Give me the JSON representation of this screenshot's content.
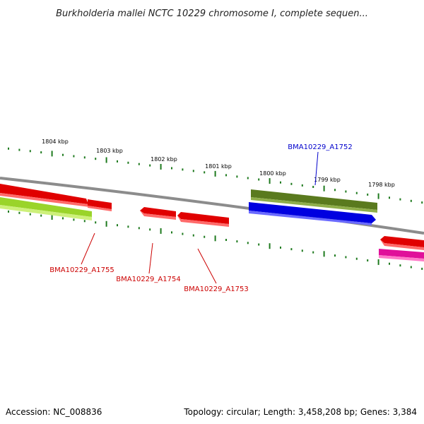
{
  "title": "Burkholderia mallei NCTC 10229 chromosome I, complete sequen...",
  "footer": {
    "accession": "Accession: NC_008836",
    "topology": "Topology: circular; Length: 3,458,208 bp; Genes: 3,384"
  },
  "ticks": [
    {
      "label": "1804 kbp"
    },
    {
      "label": "1803 kbp"
    },
    {
      "label": "1802 kbp"
    },
    {
      "label": "1801 kbp"
    },
    {
      "label": "1800 kbp"
    },
    {
      "label": "1799 kbp"
    },
    {
      "label": "1798 kbp"
    }
  ],
  "gene_labels": [
    {
      "name": "BMA10229_A1752",
      "color": "#0000cc"
    },
    {
      "name": "BMA10229_A1755",
      "color": "#cc0000"
    },
    {
      "name": "BMA10229_A1754",
      "color": "#cc0000"
    },
    {
      "name": "BMA10229_A1753",
      "color": "#cc0000"
    }
  ],
  "colors": {
    "backbone": "#8c8c8c",
    "tick": "#1e7a1e",
    "cds_red": "#e00000",
    "cds_lime": "#9ad42a",
    "cds_olive": "#5a7a1e",
    "cds_blue": "#0000e0",
    "cds_magenta": "#e0109a"
  }
}
